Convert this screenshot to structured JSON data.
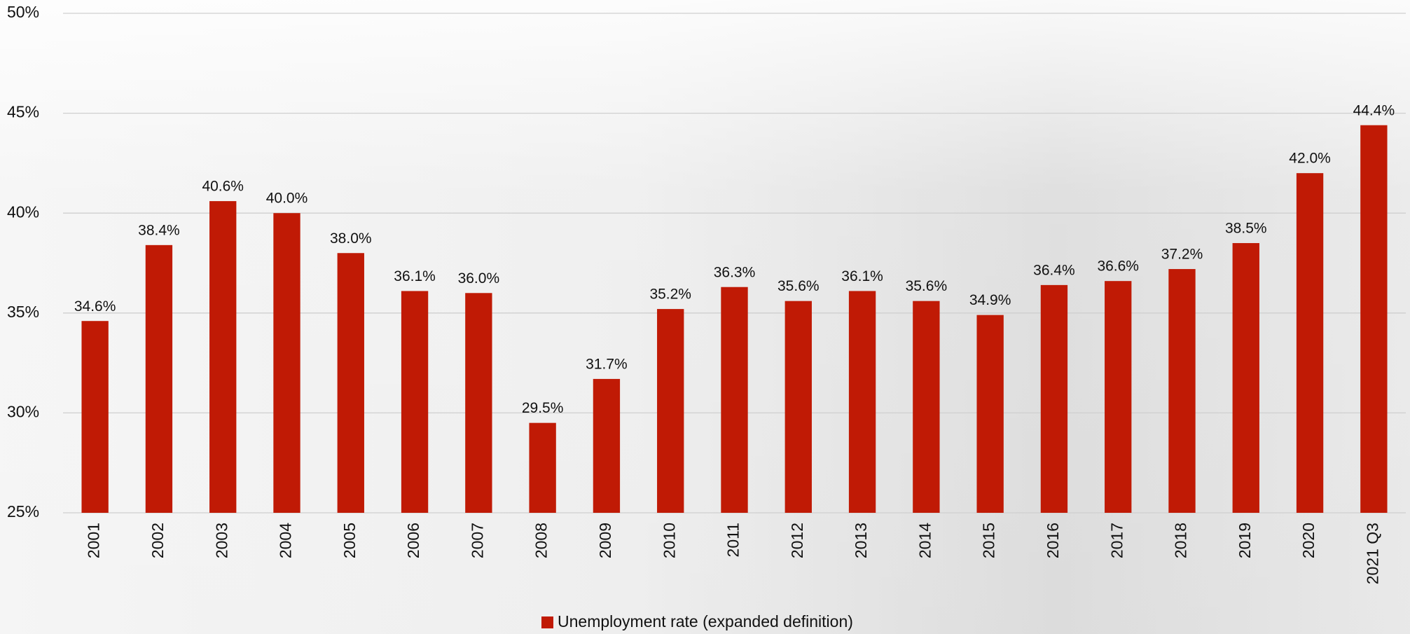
{
  "chart_data": {
    "type": "bar",
    "categories": [
      "2001",
      "2002",
      "2003",
      "2004",
      "2005",
      "2006",
      "2007",
      "2008",
      "2009",
      "2010",
      "2011",
      "2012",
      "2013",
      "2014",
      "2015",
      "2016",
      "2017",
      "2018",
      "2019",
      "2020",
      "2021 Q3"
    ],
    "series": [
      {
        "name": "Unemployment rate (expanded definition)",
        "color": "#c01a05",
        "values": [
          34.6,
          38.4,
          40.6,
          40.0,
          38.0,
          36.1,
          36.0,
          29.5,
          31.7,
          35.2,
          36.3,
          35.6,
          36.1,
          35.6,
          34.9,
          36.4,
          36.6,
          37.2,
          38.5,
          42.0,
          44.4
        ],
        "value_labels": [
          "34.6%",
          "38.4%",
          "40.6%",
          "40.0%",
          "38.0%",
          "36.1%",
          "36.0%",
          "29.5%",
          "31.7%",
          "35.2%",
          "36.3%",
          "35.6%",
          "36.1%",
          "35.6%",
          "34.9%",
          "36.4%",
          "36.6%",
          "37.2%",
          "38.5%",
          "42.0%",
          "44.4%"
        ]
      }
    ],
    "ylim": [
      25,
      50
    ],
    "yticks": [
      {
        "value": 25,
        "label": "25%"
      },
      {
        "value": 30,
        "label": "30%"
      },
      {
        "value": 35,
        "label": "35%"
      },
      {
        "value": 40,
        "label": "40%"
      },
      {
        "value": 45,
        "label": "45%"
      },
      {
        "value": 50,
        "label": "50%"
      }
    ],
    "grid": true,
    "legend": "bottom"
  }
}
